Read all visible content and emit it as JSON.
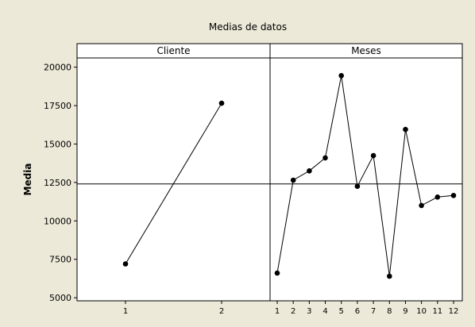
{
  "chart_data": {
    "type": "line",
    "title": "Medias de datos",
    "ylabel": "Media",
    "ylim": [
      4800,
      20600
    ],
    "yticks": [
      5000,
      7500,
      10000,
      12500,
      15000,
      17500,
      20000
    ],
    "reference_line": 12400,
    "grid": false,
    "background_color": "#ece9d8",
    "plot_color": "#ffffff",
    "panels": [
      {
        "name": "Cliente",
        "categories": [
          "1",
          "2"
        ],
        "values": [
          7200,
          17650
        ]
      },
      {
        "name": "Meses",
        "categories": [
          "1",
          "2",
          "3",
          "4",
          "5",
          "6",
          "7",
          "8",
          "9",
          "10",
          "11",
          "12"
        ],
        "values": [
          6600,
          12650,
          13250,
          14100,
          19450,
          12250,
          14250,
          6400,
          15950,
          11000,
          11550,
          11650
        ]
      }
    ]
  }
}
